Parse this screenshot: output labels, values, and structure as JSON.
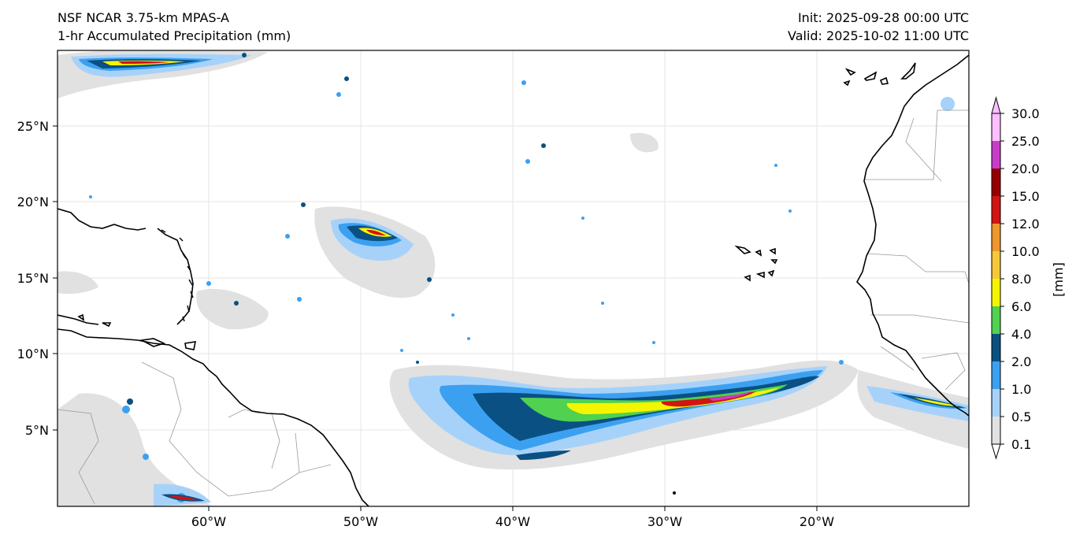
{
  "header": {
    "title_line1": "NSF NCAR 3.75-km MPAS-A",
    "title_line2": "1-hr Accumulated Precipitation (mm)",
    "init_label": "Init: 2025-09-28 00:00 UTC",
    "valid_label": "Valid: 2025-10-02 11:00 UTC"
  },
  "map": {
    "lon_ticks": [
      "60°W",
      "50°W",
      "40°W",
      "30°W",
      "20°W"
    ],
    "lat_ticks": [
      "25°N",
      "20°N",
      "15°N",
      "10°N",
      "5°N"
    ]
  },
  "colorbar": {
    "unit_label": "[mm]",
    "levels": [
      "0.1",
      "0.5",
      "1.0",
      "2.0",
      "4.0",
      "6.0",
      "8.0",
      "10.0",
      "12.0",
      "15.0",
      "20.0",
      "25.0",
      "30.0"
    ],
    "colors": [
      "#e1e1e1",
      "#a6d2fa",
      "#3ca0f0",
      "#0a5082",
      "#50d250",
      "#f5f500",
      "#f5c837",
      "#f0962d",
      "#d21414",
      "#960000",
      "#c83cc8",
      "#ffbeff"
    ],
    "under_color": "#ffffff",
    "over_color": "#ffbeff"
  },
  "colors": {
    "coastline": "#000000",
    "borders": "#999999",
    "gridlines": "#e6e6e6"
  }
}
